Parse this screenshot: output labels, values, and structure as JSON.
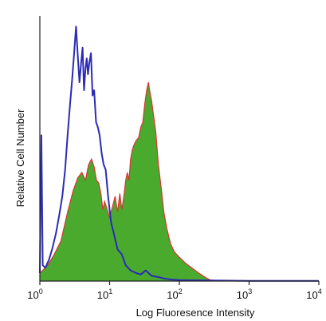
{
  "chart_data": {
    "type": "area",
    "xlabel": "Log Fluoresence Intensity",
    "ylabel": "Relative Cell Number",
    "x_scale": "log",
    "xlim": [
      1,
      10000
    ],
    "ylim": [
      0,
      100
    ],
    "x_ticks": [
      {
        "value": 1,
        "base": "10",
        "exp": "0"
      },
      {
        "value": 10,
        "base": "10",
        "exp": "1"
      },
      {
        "value": 100,
        "base": "10",
        "exp": "2"
      },
      {
        "value": 1000,
        "base": "10",
        "exp": "3"
      },
      {
        "value": 10000,
        "base": "10",
        "exp": "4"
      }
    ],
    "grid": false,
    "legend": "none",
    "series": [
      {
        "style": "line",
        "color": "#2b2bb5",
        "x": [
          1.0,
          1.05,
          1.1,
          1.2,
          1.35,
          1.5,
          1.7,
          1.9,
          2.1,
          2.3,
          2.5,
          2.7,
          2.9,
          3.1,
          3.3,
          3.5,
          3.7,
          3.9,
          4.1,
          4.3,
          4.5,
          4.7,
          4.9,
          5.1,
          5.4,
          5.7,
          6.0,
          6.4,
          6.8,
          7.2,
          7.7,
          8.2,
          8.8,
          9.5,
          10.5,
          11.5,
          13,
          15,
          17,
          20,
          24,
          28,
          33,
          40,
          50,
          60,
          75,
          100,
          150,
          300,
          1000,
          10000
        ],
        "y": [
          3,
          55,
          6,
          5,
          8,
          12,
          18,
          25,
          32,
          42,
          55,
          66,
          76,
          86,
          96,
          85,
          75,
          82,
          88,
          72,
          80,
          84,
          78,
          82,
          86,
          70,
          72,
          60,
          58,
          55,
          48,
          44,
          42,
          32,
          22,
          18,
          12,
          10,
          6,
          4,
          3,
          2.5,
          4,
          2,
          1.5,
          1,
          0.6,
          0.4,
          0.3,
          0.2,
          0.1,
          0.1
        ]
      },
      {
        "style": "area",
        "color": "#4aaa2e",
        "edge_color": "#dd3333",
        "x": [
          1.0,
          1.3,
          1.6,
          2.0,
          2.5,
          3.0,
          3.5,
          4.0,
          4.5,
          5.0,
          5.5,
          6.0,
          6.5,
          7.0,
          7.5,
          8.0,
          8.5,
          9.0,
          10,
          11,
          12,
          13,
          14,
          15,
          16,
          17,
          18,
          19,
          20,
          21,
          22,
          24,
          26,
          28,
          30,
          32,
          34,
          36,
          38,
          40,
          43,
          46,
          50,
          55,
          60,
          66,
          75,
          85,
          100,
          120,
          150,
          190,
          250,
          300
        ],
        "y": [
          3,
          6,
          10,
          15,
          26,
          34,
          39,
          41,
          38,
          44,
          46,
          43,
          38,
          37,
          33,
          27,
          30,
          28,
          24,
          28,
          32,
          26,
          33,
          27,
          32,
          38,
          41,
          38,
          46,
          49,
          51,
          53,
          54,
          58,
          60,
          67,
          72,
          75,
          71,
          68,
          62,
          56,
          44,
          35,
          26,
          20,
          14,
          11,
          9,
          7,
          5,
          3,
          1,
          0
        ]
      }
    ]
  }
}
